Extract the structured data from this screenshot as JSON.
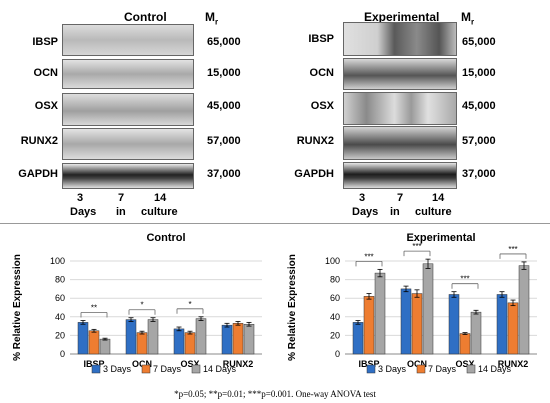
{
  "blots": {
    "control": {
      "title": "Control"
    },
    "experimental": {
      "title": "Experimental"
    },
    "mr_label": "M",
    "mr_sub": "r",
    "proteins": [
      "IBSP",
      "OCN",
      "OSX",
      "RUNX2",
      "GAPDH"
    ],
    "mw": [
      "65,000",
      "15,000",
      "45,000",
      "57,000",
      "37,000"
    ],
    "time_numbers": [
      "3",
      "7",
      "14"
    ],
    "time_words": [
      "Days",
      "in",
      "culture"
    ]
  },
  "legend": [
    "3 Days",
    "7 Days",
    "14 Days"
  ],
  "colors": {
    "day3": "#2f6fc4",
    "day7": "#ee7d31",
    "day14": "#a6a6a6"
  },
  "footnote": "*p=0.05; **p=0.01; ***p=0.001. One-way ANOVA test",
  "chart_data": [
    {
      "type": "bar",
      "title": "Control",
      "ylabel": "% Relative Expression",
      "ylim": [
        0,
        100
      ],
      "yticks": [
        "0",
        "20",
        "40",
        "60",
        "80",
        "100"
      ],
      "categories": [
        "IBSP",
        "OCN",
        "OSX",
        "RUNX2"
      ],
      "series": [
        {
          "name": "3 Days",
          "values": [
            34,
            37,
            27,
            31
          ],
          "errors": [
            2,
            2,
            2,
            2
          ]
        },
        {
          "name": "7 Days",
          "values": [
            25,
            23,
            23,
            33
          ],
          "errors": [
            1.5,
            1.5,
            1.5,
            2
          ]
        },
        {
          "name": "14 Days",
          "values": [
            16,
            37,
            38,
            32
          ],
          "errors": [
            1,
            2,
            2,
            2
          ]
        }
      ],
      "significance": [
        "**",
        "*",
        "*",
        ""
      ]
    },
    {
      "type": "bar",
      "title": "Experimental",
      "ylabel": "% Relative Expression",
      "ylim": [
        0,
        100
      ],
      "yticks": [
        "0",
        "20",
        "40",
        "60",
        "80",
        "100"
      ],
      "categories": [
        "IBSP",
        "OCN",
        "OSX",
        "RUNX2"
      ],
      "series": [
        {
          "name": "3 Days",
          "values": [
            34,
            70,
            64,
            64
          ],
          "errors": [
            2,
            3,
            3,
            3
          ]
        },
        {
          "name": "7 Days",
          "values": [
            62,
            65,
            22,
            55
          ],
          "errors": [
            3,
            4,
            1,
            3
          ]
        },
        {
          "name": "14 Days",
          "values": [
            87,
            97,
            45,
            95
          ],
          "errors": [
            4,
            5,
            2,
            4
          ]
        }
      ],
      "significance": [
        "***",
        "***",
        "***",
        "***"
      ]
    }
  ]
}
